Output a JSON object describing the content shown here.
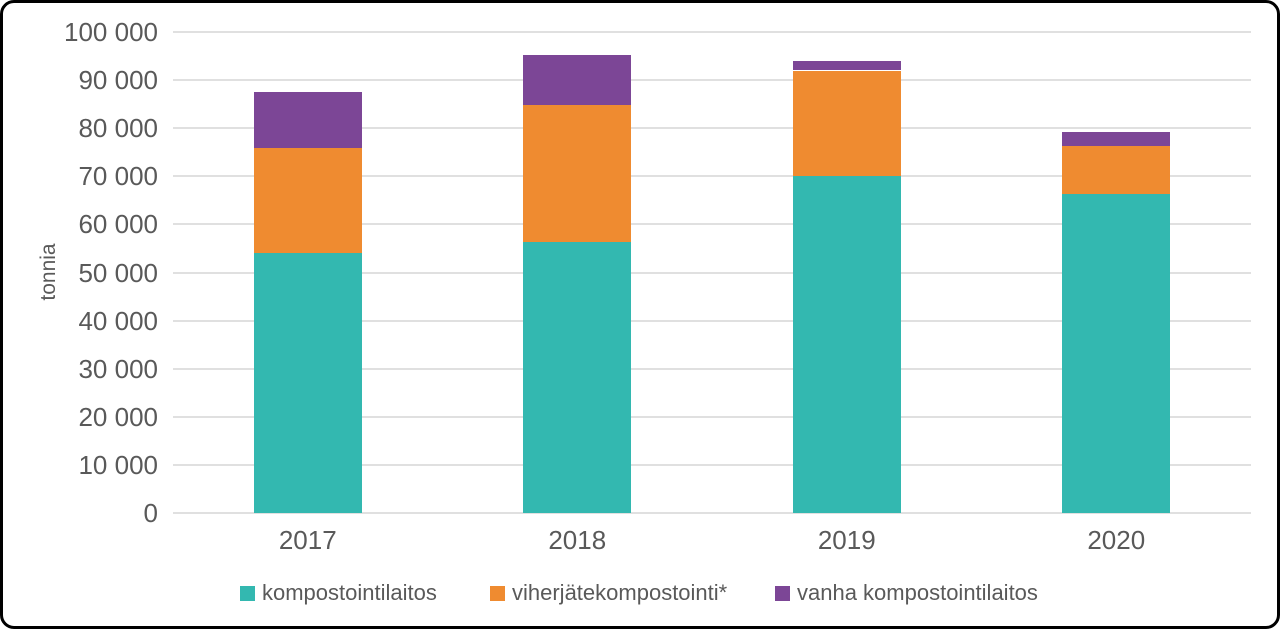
{
  "chart_data": {
    "type": "bar",
    "stacked": true,
    "title": "",
    "xlabel": "",
    "ylabel": "tonnia",
    "categories": [
      "2017",
      "2018",
      "2019",
      "2020"
    ],
    "series": [
      {
        "name": "kompostointilaitos",
        "color": "#33b8b0",
        "values": [
          54100,
          56300,
          70000,
          66300
        ]
      },
      {
        "name": "viherjätekompostointi*",
        "color": "#ef8b30",
        "values": [
          21800,
          28500,
          22000,
          10100
        ]
      },
      {
        "name": "vanha kompostointilaitos",
        "color": "#7c4696",
        "values": [
          11600,
          10400,
          2000,
          2900
        ]
      }
    ],
    "ylim": [
      0,
      100000
    ],
    "ytick_step": 10000,
    "ytick_labels": [
      "0",
      "10 000",
      "20 000",
      "30 000",
      "40 000",
      "50 000",
      "60 000",
      "70 000",
      "80 000",
      "90 000",
      "100 000"
    ],
    "grid": true,
    "legend_position": "bottom"
  },
  "colors": {
    "text": "#595959",
    "gridline": "#e0e0e0",
    "frame_border": "#000000",
    "background": "#ffffff"
  }
}
